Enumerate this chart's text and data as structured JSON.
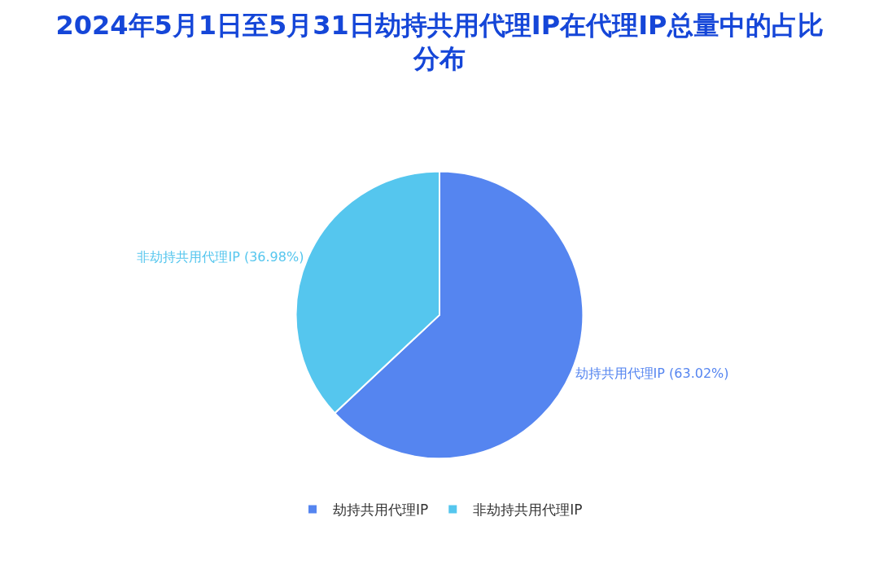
{
  "chart_data": {
    "type": "pie",
    "title": "2024年5月1日至5月31日劫持共用代理IP在代理IP总量中的占比分布",
    "categories": [
      "劫持共用代理IP",
      "非劫持共用代理IP"
    ],
    "values": [
      63.02,
      36.98
    ],
    "colors": [
      "#5585f0",
      "#55c6ee"
    ],
    "value_labels": [
      "劫持共用代理IP (63.02%)",
      "非劫持共用代理IP (36.98%)"
    ],
    "legend": "bottom"
  }
}
